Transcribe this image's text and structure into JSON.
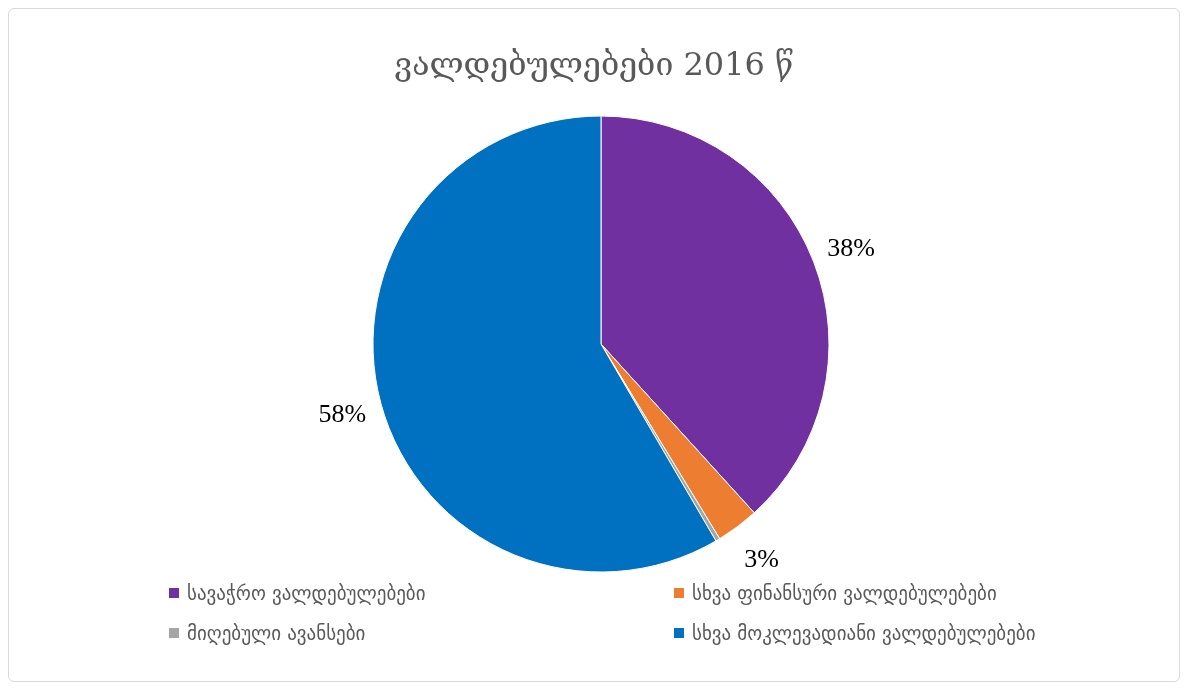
{
  "chart_data": {
    "type": "pie",
    "title": "ვალდებულებები 2016 წ",
    "categories": [
      "სავაჭრო ვალდებულებები",
      "სხვა ფინანსური ვალდებულებები",
      "მიღებული ავანსები",
      "სხვა მოკლევადიანი ვალდებულებები"
    ],
    "values": [
      38,
      3,
      0.3,
      58
    ],
    "colors": [
      "#7030a0",
      "#ed7d31",
      "#a5a5a5",
      "#0070c0"
    ],
    "value_labels": [
      "38%",
      "3%",
      null,
      "58%"
    ],
    "legend": "bottom"
  }
}
